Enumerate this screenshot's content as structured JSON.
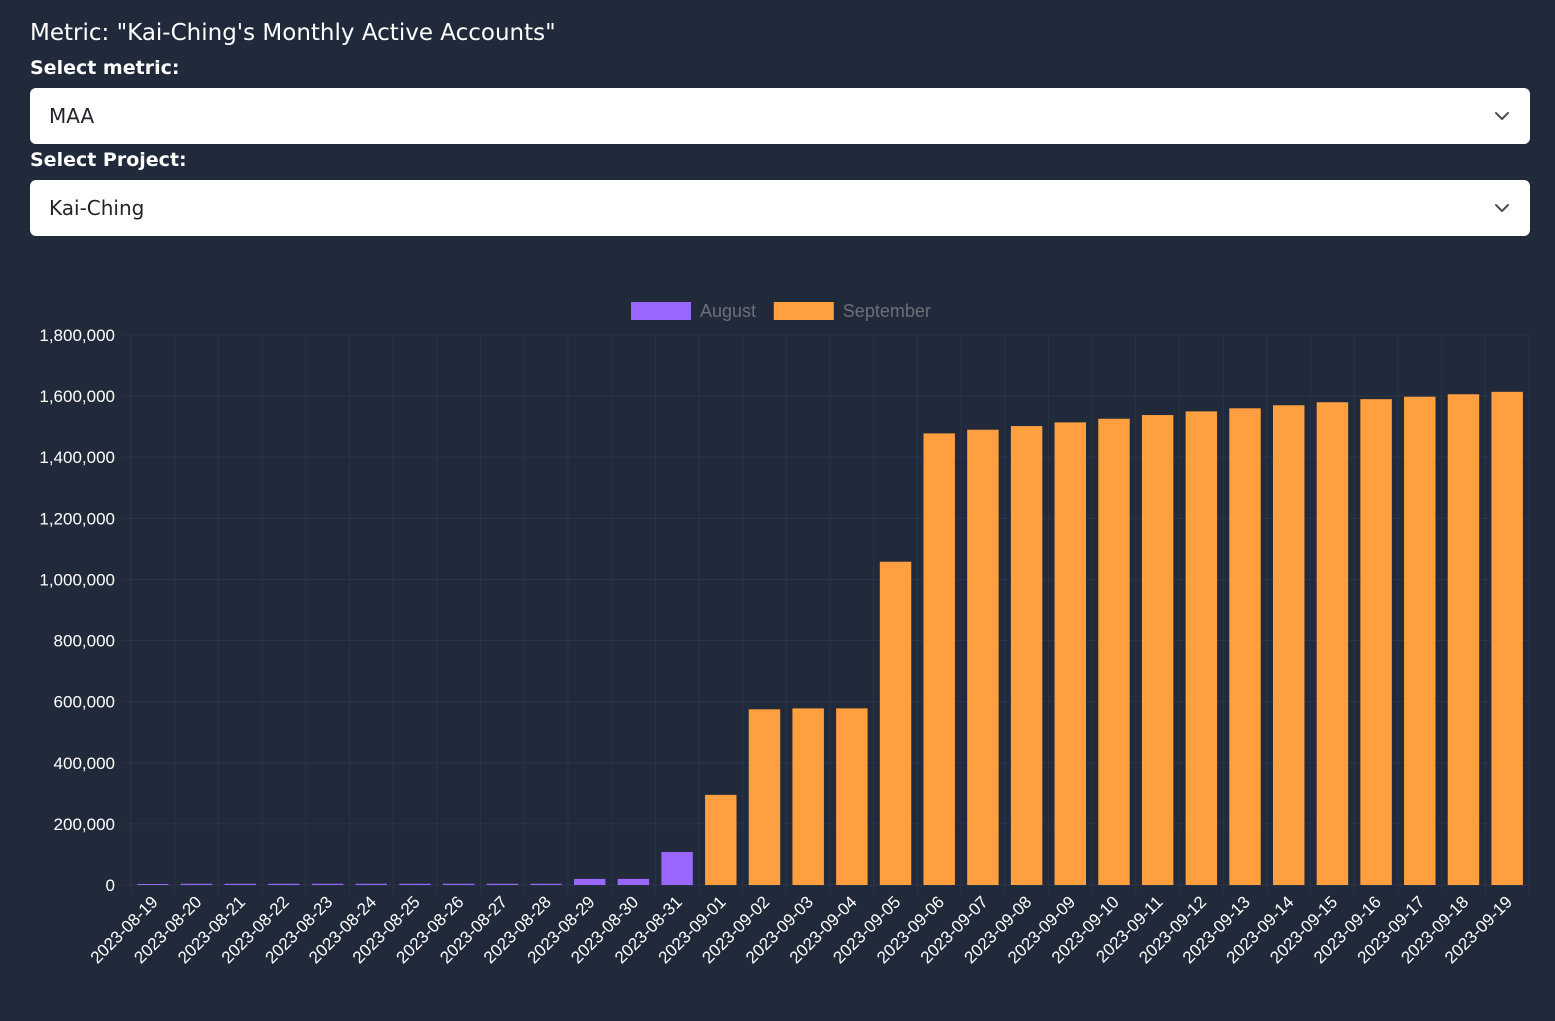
{
  "header": {
    "metric_title": "Metric: \"Kai-Ching's Monthly Active Accounts\""
  },
  "controls": {
    "metric_label": "Select metric:",
    "metric_value": "MAA",
    "project_label": "Select Project:",
    "project_value": "Kai-Ching",
    "chevron_icon": "chevron-down-icon"
  },
  "colors": {
    "background": "#212a3b",
    "august": "#9966ff",
    "september": "#ff9f40",
    "grid": "#2b3447"
  },
  "chart_data": {
    "type": "bar",
    "categories": [
      "2023-08-19",
      "2023-08-20",
      "2023-08-21",
      "2023-08-22",
      "2023-08-23",
      "2023-08-24",
      "2023-08-25",
      "2023-08-26",
      "2023-08-27",
      "2023-08-28",
      "2023-08-29",
      "2023-08-30",
      "2023-08-31",
      "2023-09-01",
      "2023-09-02",
      "2023-09-03",
      "2023-09-04",
      "2023-09-05",
      "2023-09-06",
      "2023-09-07",
      "2023-09-08",
      "2023-09-09",
      "2023-09-10",
      "2023-09-11",
      "2023-09-12",
      "2023-09-13",
      "2023-09-14",
      "2023-09-15",
      "2023-09-16",
      "2023-09-17",
      "2023-09-18",
      "2023-09-19"
    ],
    "series": [
      {
        "name": "August",
        "color": "#9966ff",
        "values": [
          2000,
          4000,
          4000,
          4000,
          4000,
          4000,
          4000,
          4000,
          4000,
          4000,
          20000,
          20000,
          108000,
          null,
          null,
          null,
          null,
          null,
          null,
          null,
          null,
          null,
          null,
          null,
          null,
          null,
          null,
          null,
          null,
          null,
          null,
          null
        ]
      },
      {
        "name": "September",
        "color": "#ff9f40",
        "values": [
          null,
          null,
          null,
          null,
          null,
          null,
          null,
          null,
          null,
          null,
          null,
          null,
          null,
          295000,
          575000,
          578000,
          578000,
          1058000,
          1478000,
          1490000,
          1502000,
          1514000,
          1526000,
          1538000,
          1550000,
          1560000,
          1570000,
          1580000,
          1590000,
          1598000,
          1606000,
          1614000
        ]
      }
    ],
    "yticks": [
      "0",
      "200,000",
      "400,000",
      "600,000",
      "800,000",
      "1,000,000",
      "1,200,000",
      "1,400,000",
      "1,600,000",
      "1,800,000"
    ],
    "ylim": [
      0,
      1800000
    ],
    "stacked": true,
    "grid": true,
    "legend": "top"
  }
}
